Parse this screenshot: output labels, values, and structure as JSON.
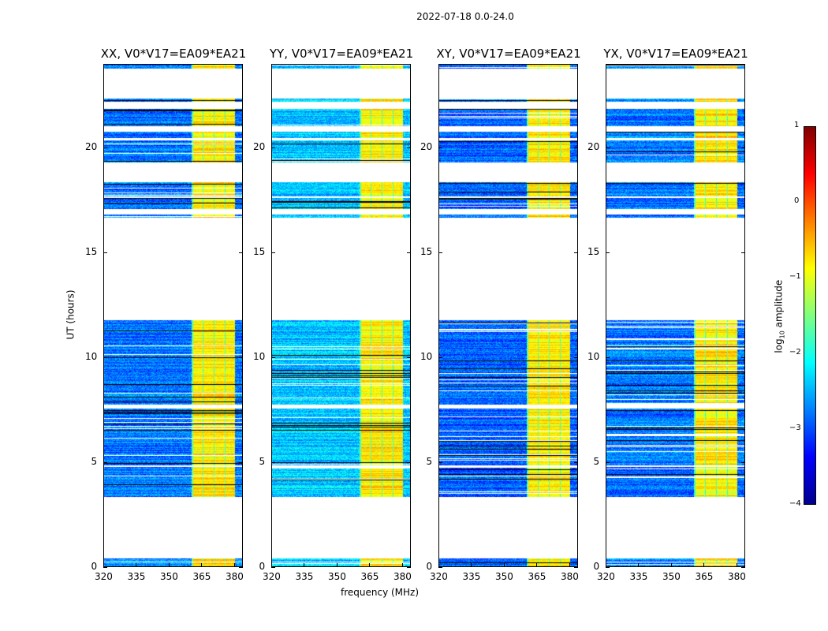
{
  "chart_data": {
    "type": "heatmap",
    "title": "2022-07-18 0.0-24.0",
    "xlabel": "frequency (MHz)",
    "ylabel": "UT (hours)",
    "xlim": [
      320,
      384
    ],
    "ylim": [
      0,
      24
    ],
    "xticks": [
      "320",
      "335",
      "350",
      "365",
      "380"
    ],
    "xtick_values": [
      320,
      335,
      350,
      365,
      380
    ],
    "yticks": [
      "0",
      "5",
      "10",
      "15",
      "20"
    ],
    "ytick_values": [
      0,
      5,
      10,
      15,
      20
    ],
    "panels": [
      {
        "title": "XX, V0*V17=EA09*EA21",
        "base": -2.8
      },
      {
        "title": "YY, V0*V17=EA09*EA21",
        "base": -2.4
      },
      {
        "title": "XY, V0*V17=EA09*EA21",
        "base": -2.9
      },
      {
        "title": "YX, V0*V17=EA09*EA21",
        "base": -2.8
      }
    ],
    "data_segments_hours": [
      [
        0,
        0.45
      ],
      [
        3.4,
        4.8
      ],
      [
        4.9,
        7.6
      ],
      [
        7.8,
        11.8
      ],
      [
        16.7,
        16.85
      ],
      [
        17.1,
        17.65
      ],
      [
        17.7,
        18.4
      ],
      [
        19.35,
        20.4
      ],
      [
        20.5,
        20.8
      ],
      [
        21.05,
        21.9
      ],
      [
        22.25,
        22.4
      ],
      [
        23.8,
        24
      ]
    ],
    "bright_band_mhz": [
      360,
      380
    ],
    "bright_band_log_amplitude": -0.8,
    "background_log_amplitude": -2.8,
    "colorbar": {
      "label": "log10 amplitude",
      "label_main": "log",
      "label_sub": "10",
      "label_rest": " amplitude",
      "range": [
        -4,
        1
      ],
      "ticks": [
        "1",
        "0",
        "−1",
        "−2",
        "−3",
        "−4"
      ],
      "tick_values": [
        1,
        0,
        -1,
        -2,
        -3,
        -4
      ],
      "colormap": "jet"
    }
  }
}
